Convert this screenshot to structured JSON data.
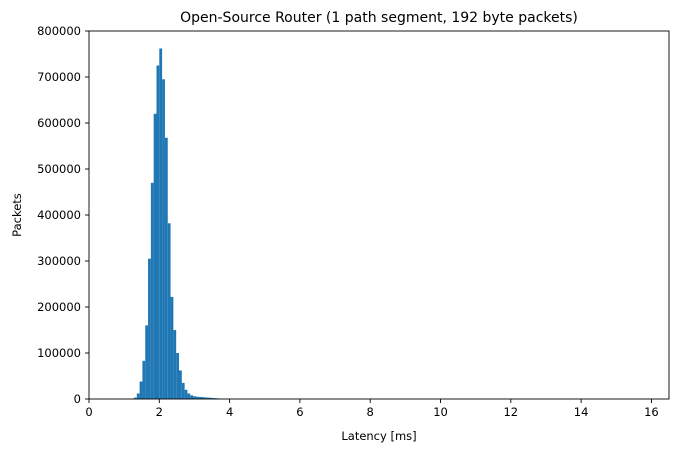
{
  "chart_data": {
    "type": "bar",
    "subtype": "histogram",
    "title": "Open-Source Router (1 path segment, 192 byte packets)",
    "xlabel": "Latency [ms]",
    "ylabel": "Packets",
    "xlim": [
      0,
      16.5
    ],
    "ylim": [
      0,
      800000
    ],
    "xticks": [
      0,
      2,
      4,
      6,
      8,
      10,
      12,
      14,
      16
    ],
    "xtick_labels": [
      "0",
      "2",
      "4",
      "6",
      "8",
      "10",
      "12",
      "14",
      "16"
    ],
    "yticks": [
      0,
      100000,
      200000,
      300000,
      400000,
      500000,
      600000,
      700000,
      800000
    ],
    "ytick_labels": [
      "0",
      "100000",
      "200000",
      "300000",
      "400000",
      "500000",
      "600000",
      "700000",
      "800000"
    ],
    "bin_width": 0.08,
    "bins": [
      {
        "x0": 1.28,
        "value": 3000
      },
      {
        "x0": 1.36,
        "value": 12000
      },
      {
        "x0": 1.44,
        "value": 38000
      },
      {
        "x0": 1.52,
        "value": 83000
      },
      {
        "x0": 1.6,
        "value": 160000
      },
      {
        "x0": 1.68,
        "value": 305000
      },
      {
        "x0": 1.76,
        "value": 470000
      },
      {
        "x0": 1.84,
        "value": 620000
      },
      {
        "x0": 1.92,
        "value": 725000
      },
      {
        "x0": 2.0,
        "value": 762000
      },
      {
        "x0": 2.08,
        "value": 695000
      },
      {
        "x0": 2.16,
        "value": 568000
      },
      {
        "x0": 2.24,
        "value": 382000
      },
      {
        "x0": 2.32,
        "value": 222000
      },
      {
        "x0": 2.4,
        "value": 150000
      },
      {
        "x0": 2.48,
        "value": 100000
      },
      {
        "x0": 2.56,
        "value": 62000
      },
      {
        "x0": 2.64,
        "value": 35000
      },
      {
        "x0": 2.72,
        "value": 20000
      },
      {
        "x0": 2.8,
        "value": 12000
      },
      {
        "x0": 2.88,
        "value": 8000
      },
      {
        "x0": 2.96,
        "value": 6000
      },
      {
        "x0": 3.04,
        "value": 5000
      },
      {
        "x0": 3.12,
        "value": 4500
      },
      {
        "x0": 3.2,
        "value": 4000
      },
      {
        "x0": 3.28,
        "value": 3500
      },
      {
        "x0": 3.36,
        "value": 3000
      },
      {
        "x0": 3.44,
        "value": 2500
      },
      {
        "x0": 3.52,
        "value": 2000
      },
      {
        "x0": 3.6,
        "value": 1500
      },
      {
        "x0": 3.68,
        "value": 1000
      },
      {
        "x0": 3.76,
        "value": 700
      },
      {
        "x0": 3.84,
        "value": 500
      }
    ],
    "bar_color": "#1f77b4",
    "grid": false,
    "legend": "none"
  }
}
